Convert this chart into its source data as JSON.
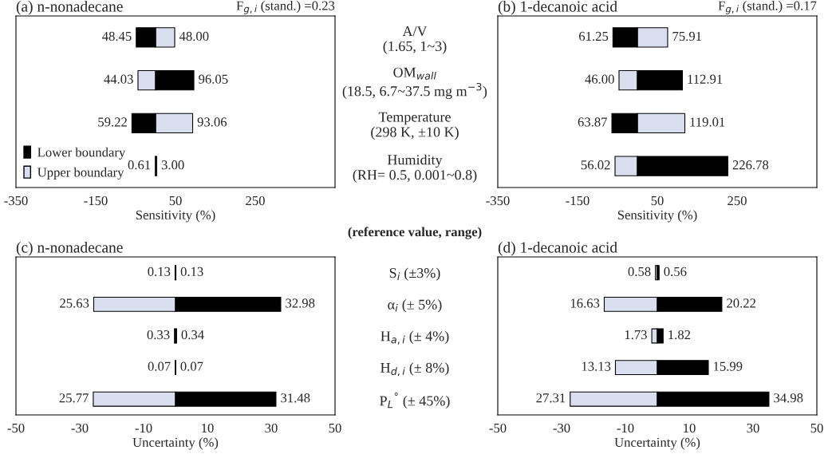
{
  "chart_data": [
    {
      "type": "bar",
      "orientation": "horizontal",
      "title": "(a) n-nonadecane",
      "xlabel": "Sensitivity (%)",
      "categories": [
        "A/V\n(1.65, 1~3)",
        "OM$_{wall}$\n(18.5, 6.7~37.5 mg m$^{−3}$)",
        "Temperature\n(298 K, ±10 K)",
        "Humidity\n(RH= 0.5, 0.001~0.8)"
      ],
      "series": [
        {
          "name": "Upper boundary",
          "color": "#d9dfef",
          "base": [
            0,
            -44.03,
            0,
            0
          ],
          "values": [
            48.0,
            44.03,
            93.06,
            3.0
          ],
          "value_labels": [
            "48.00",
            "44.03",
            "93.06",
            "3.00"
          ]
        },
        {
          "name": "Lower boundary",
          "color": "#000000",
          "base": [
            -48.45,
            0,
            -59.22,
            -0.61
          ],
          "values": [
            48.45,
            96.05,
            59.22,
            0.61
          ],
          "value_labels": [
            "48.45",
            "96.05",
            "59.22",
            "0.61"
          ]
        }
      ],
      "xlim": [
        -350,
        450
      ],
      "xticks": [
        -350,
        -150,
        50,
        250
      ],
      "legend": "bottom left",
      "grid": false,
      "annotations": [
        "F$_{g,i}$ (stand.) =0.23",
        "(reference value, range)"
      ]
    },
    {
      "type": "bar",
      "orientation": "horizontal",
      "title": "(b) 1-decanoic acid",
      "xlabel": "Sensitivity (%)",
      "categories": [
        null,
        null,
        null,
        null
      ],
      "series": [
        {
          "color": "#d9dfef",
          "base": [
            0,
            -46.0,
            0,
            -56.02
          ],
          "values": [
            75.91,
            46.0,
            119.01,
            56.02
          ],
          "value_labels": [
            "75.91",
            "46.00",
            "119.01",
            "56.02"
          ]
        },
        {
          "color": "#000000",
          "base": [
            -61.25,
            0,
            -63.87,
            0
          ],
          "values": [
            61.25,
            112.91,
            63.87,
            226.78
          ],
          "value_labels": [
            "61.25",
            "112.91",
            "63.87",
            "226.78"
          ]
        }
      ],
      "xlim": [
        -350,
        450
      ],
      "xticks": [
        -350,
        -150,
        50,
        250
      ],
      "grid": false,
      "annotations": [
        "F$_{g,i}$ (stand.) =0.17"
      ]
    },
    {
      "type": "bar",
      "orientation": "horizontal",
      "title": "(c) n-nonadecane",
      "xlabel": "Uncertainty (%)",
      "categories": [
        "S$_{i}$ (±3%)",
        "α$_{i}$ (± 5%)",
        "H$_{a,i}$ (± 4%)",
        "H$_{d,i}$ (± 8%)",
        "P$_{L}$$^{°}$ (± 45%)"
      ],
      "series": [
        {
          "color": "#d9dfef",
          "base": [
            -0.13,
            -25.63,
            -0.33,
            -0.07,
            -25.77
          ],
          "values": [
            0.13,
            25.63,
            0.33,
            0.07,
            25.77
          ],
          "value_labels": [
            "0.13",
            "25.63",
            "0.33",
            "0.07",
            "25.77"
          ]
        },
        {
          "color": "#000000",
          "values": [
            0.13,
            32.98,
            0.34,
            0.07,
            31.48
          ],
          "value_labels": [
            "0.13",
            "32.98",
            "0.34",
            "0.07",
            "31.48"
          ]
        }
      ],
      "xlim": [
        -50,
        50
      ],
      "xticks": [
        -50,
        -30,
        -10,
        10,
        30,
        50
      ],
      "grid": false
    },
    {
      "type": "bar",
      "orientation": "horizontal",
      "title": "(d) 1-decanoic acid",
      "xlabel": "Uncertainty (%)",
      "categories": [
        null,
        null,
        null,
        null,
        null
      ],
      "series": [
        {
          "color": "#d9dfef",
          "base": [
            -0.58,
            -16.63,
            -1.73,
            -13.13,
            -27.31
          ],
          "values": [
            0.58,
            16.63,
            1.73,
            13.13,
            27.31
          ],
          "value_labels": [
            "0.58",
            "16.63",
            "1.73",
            "13.13",
            "27.31"
          ]
        },
        {
          "color": "#000000",
          "values": [
            0.56,
            20.22,
            1.82,
            15.99,
            34.98
          ],
          "value_labels": [
            "0.56",
            "20.22",
            "1.82",
            "15.99",
            "34.98"
          ]
        }
      ],
      "xlim": [
        -50,
        50
      ],
      "xticks": [
        -50,
        -30,
        -10,
        10,
        30,
        50
      ],
      "grid": false
    }
  ]
}
